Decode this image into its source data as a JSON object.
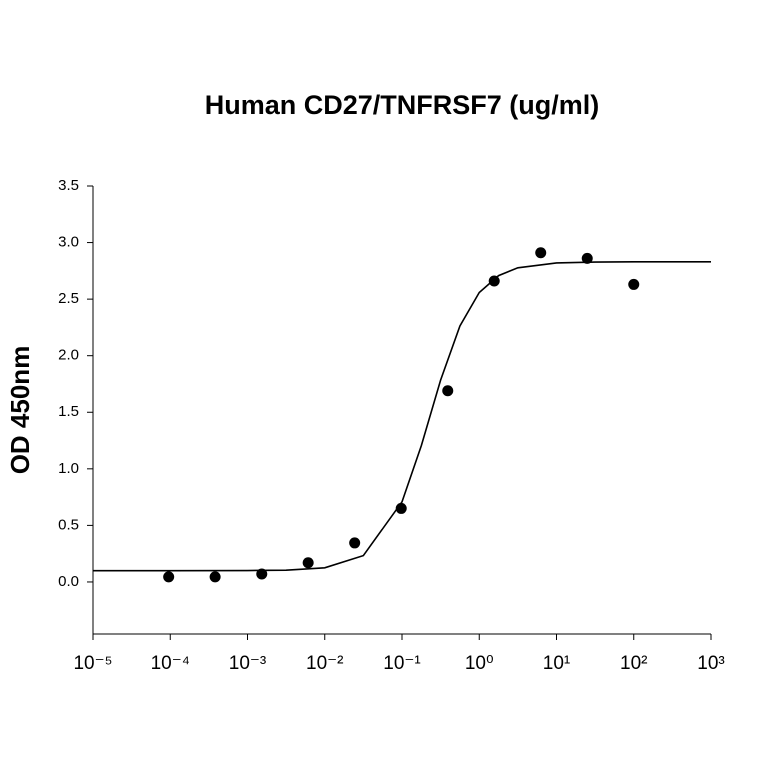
{
  "chart_data": {
    "type": "scatter",
    "title": "Human CD27/TNFRSF7 (ug/ml)",
    "y_label": "OD 450nm",
    "xscale": "log",
    "xlim": [
      1e-05,
      1000
    ],
    "ylim": [
      -0.46,
      3.5
    ],
    "xticks": [
      {
        "value": 1e-05,
        "label": "10⁻⁵"
      },
      {
        "value": 0.0001,
        "label": "10⁻⁴"
      },
      {
        "value": 0.001,
        "label": "10⁻³"
      },
      {
        "value": 0.01,
        "label": "10⁻²"
      },
      {
        "value": 0.1,
        "label": "10⁻¹"
      },
      {
        "value": 1,
        "label": "10⁰"
      },
      {
        "value": 10,
        "label": "10¹"
      },
      {
        "value": 100,
        "label": "10²"
      },
      {
        "value": 1000,
        "label": "10³"
      }
    ],
    "yticks": [
      {
        "value": 0,
        "label": "0.0"
      },
      0.5,
      {
        "value": 1,
        "label": "1.0"
      },
      1.5,
      {
        "value": 2,
        "label": "2.0"
      },
      2.5,
      {
        "value": 3,
        "label": "3.0"
      },
      3.5
    ],
    "series": [
      {
        "kind": "scatter",
        "color": "#000000",
        "x": [
          9.54e-05,
          0.000381,
          0.00153,
          0.0061,
          0.0244,
          0.0977,
          0.391,
          1.5625,
          6.25,
          25,
          100
        ],
        "values": [
          0.045,
          0.045,
          0.07,
          0.17,
          0.345,
          0.65,
          1.69,
          2.66,
          2.91,
          2.86,
          2.63
        ]
      },
      {
        "kind": "line",
        "color": "#000000",
        "x": [
          1e-05,
          0.0001,
          0.001,
          0.00316,
          0.01,
          0.0316,
          0.1,
          0.178,
          0.316,
          0.562,
          1,
          1.78,
          3.16,
          10,
          31.6,
          100,
          1000
        ],
        "values": [
          0.1,
          0.1,
          0.101,
          0.104,
          0.125,
          0.233,
          0.708,
          1.205,
          1.784,
          2.263,
          2.559,
          2.708,
          2.777,
          2.82,
          2.828,
          2.83,
          2.83
        ]
      }
    ]
  }
}
